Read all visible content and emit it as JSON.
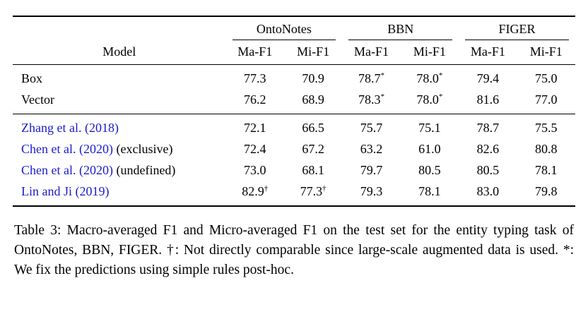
{
  "colors": {
    "citation": "#1B1BCD",
    "text": "#000000",
    "background": "#FFFFFF"
  },
  "table": {
    "model_header": "Model",
    "groups": [
      {
        "label": "OntoNotes"
      },
      {
        "label": "BBN"
      },
      {
        "label": "FIGER"
      }
    ],
    "subheaders": [
      "Ma-F1",
      "Mi-F1",
      "Ma-F1",
      "Mi-F1",
      "Ma-F1",
      "Mi-F1"
    ],
    "rows": [
      {
        "model_cite": "",
        "model_rest": "Box",
        "cells": [
          {
            "v": "77.3"
          },
          {
            "v": "70.9"
          },
          {
            "v": "78.7",
            "sup": "*"
          },
          {
            "v": "78.0",
            "sup": "*"
          },
          {
            "v": "79.4"
          },
          {
            "v": "75.0"
          }
        ]
      },
      {
        "model_cite": "",
        "model_rest": "Vector",
        "cells": [
          {
            "v": "76.2"
          },
          {
            "v": "68.9"
          },
          {
            "v": "78.3",
            "sup": "*"
          },
          {
            "v": "78.0",
            "sup": "*"
          },
          {
            "v": "81.6"
          },
          {
            "v": "77.0"
          }
        ]
      },
      {
        "model_cite": "Zhang et al. (2018)",
        "model_rest": "",
        "cells": [
          {
            "v": "72.1"
          },
          {
            "v": "66.5"
          },
          {
            "v": "75.7"
          },
          {
            "v": "75.1"
          },
          {
            "v": "78.7"
          },
          {
            "v": "75.5"
          }
        ]
      },
      {
        "model_cite": "Chen et al. (2020)",
        "model_rest": " (exclusive)",
        "cells": [
          {
            "v": "72.4"
          },
          {
            "v": "67.2"
          },
          {
            "v": "63.2"
          },
          {
            "v": "61.0"
          },
          {
            "v": "82.6"
          },
          {
            "v": "80.8"
          }
        ]
      },
      {
        "model_cite": "Chen et al. (2020)",
        "model_rest": " (undefined)",
        "cells": [
          {
            "v": "73.0"
          },
          {
            "v": "68.1"
          },
          {
            "v": "79.7"
          },
          {
            "v": "80.5"
          },
          {
            "v": "80.5"
          },
          {
            "v": "78.1"
          }
        ]
      },
      {
        "model_cite": "Lin and Ji (2019)",
        "model_rest": "",
        "cells": [
          {
            "v": "82.9",
            "sup": "†"
          },
          {
            "v": "77.3",
            "sup": "†"
          },
          {
            "v": "79.3"
          },
          {
            "v": "78.1"
          },
          {
            "v": "83.0"
          },
          {
            "v": "79.8"
          }
        ]
      }
    ]
  },
  "caption": {
    "text": "Table 3: Macro-averaged F1 and Micro-averaged F1 on the test set for the entity typing task of OntoNotes, BBN, FIGER. †: Not directly comparable since large-scale augmented data is used. *: We fix the predictions using simple rules post-hoc."
  }
}
